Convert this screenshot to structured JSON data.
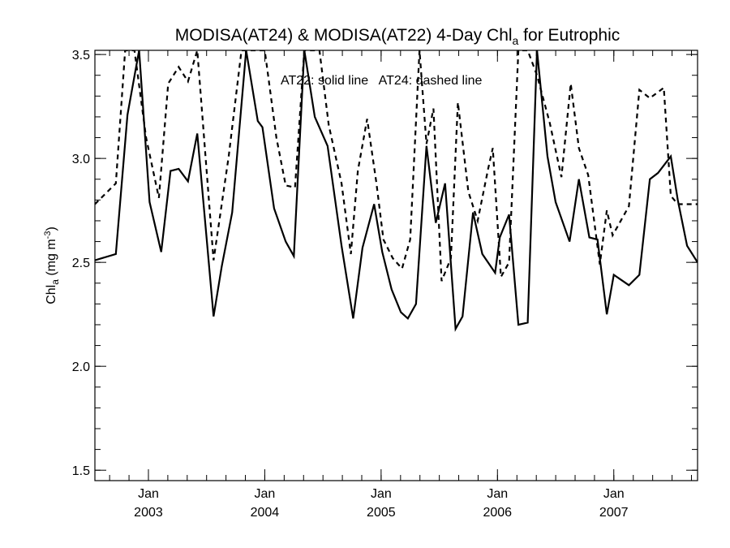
{
  "chart_data": {
    "type": "line",
    "title_main": "MODISA(AT24) & MODISA(AT22) 4-Day Chl",
    "title_sub": "a",
    "title_tail": " for Eutrophic",
    "ylabel_main": "Chl",
    "ylabel_sub": "a",
    "ylabel_unit": " (mg m",
    "ylabel_sup": "-3",
    "ylabel_close": ")",
    "annotation": "AT22: solid line   AT24: dashed line",
    "ylim": [
      1.45,
      3.52
    ],
    "xlim": [
      2002.54,
      2007.72
    ],
    "y_ticks": [
      {
        "value": 1.5,
        "label": "1.5"
      },
      {
        "value": 2.0,
        "label": "2.0"
      },
      {
        "value": 2.5,
        "label": "2.5"
      },
      {
        "value": 3.0,
        "label": "3.0"
      },
      {
        "value": 3.5,
        "label": "3.5"
      }
    ],
    "y_minor_step": 0.1,
    "x_ticks": [
      {
        "value": 2003.0,
        "month": "Jan",
        "year": "2003"
      },
      {
        "value": 2004.0,
        "month": "Jan",
        "year": "2004"
      },
      {
        "value": 2005.0,
        "month": "Jan",
        "year": "2005"
      },
      {
        "value": 2006.0,
        "month": "Jan",
        "year": "2006"
      },
      {
        "value": 2007.0,
        "month": "Jan",
        "year": "2007"
      }
    ],
    "x_minor_step": 0.1667,
    "grid": false,
    "series": [
      {
        "style": "solid",
        "x": [
          2002.54,
          2002.72,
          2002.82,
          2002.92,
          2003.01,
          2003.11,
          2003.19,
          2003.26,
          2003.34,
          2003.42,
          2003.56,
          2003.63,
          2003.72,
          2003.84,
          2003.94,
          2003.98,
          2004.08,
          2004.18,
          2004.25,
          2004.34,
          2004.43,
          2004.54,
          2004.66,
          2004.76,
          2004.84,
          2004.94,
          2005.01,
          2005.09,
          2005.17,
          2005.23,
          2005.3,
          2005.39,
          2005.47,
          2005.55,
          2005.64,
          2005.7,
          2005.79,
          2005.87,
          2005.98,
          2006.02,
          2006.1,
          2006.18,
          2006.26,
          2006.34,
          2006.43,
          2006.5,
          2006.62,
          2006.7,
          2006.79,
          2006.86,
          2006.94,
          2007.0,
          2007.13,
          2007.22,
          2007.31,
          2007.38,
          2007.49,
          2007.55,
          2007.63,
          2007.72
        ],
        "y": [
          2.51,
          2.54,
          3.21,
          3.52,
          2.79,
          2.55,
          2.94,
          2.95,
          2.89,
          3.12,
          2.24,
          2.48,
          2.74,
          3.52,
          3.18,
          3.15,
          2.76,
          2.6,
          2.53,
          3.52,
          3.2,
          3.06,
          2.58,
          2.23,
          2.57,
          2.78,
          2.55,
          2.37,
          2.26,
          2.23,
          2.3,
          3.06,
          2.69,
          2.88,
          2.18,
          2.24,
          2.74,
          2.54,
          2.45,
          2.62,
          2.73,
          2.2,
          2.21,
          3.52,
          3.01,
          2.79,
          2.6,
          2.9,
          2.62,
          2.61,
          2.25,
          2.44,
          2.39,
          2.44,
          2.9,
          2.93,
          3.01,
          2.8,
          2.58,
          2.5
        ]
      },
      {
        "style": "dashed",
        "x": [
          2002.54,
          2002.72,
          2002.8,
          2002.88,
          2002.98,
          2003.09,
          2003.17,
          2003.26,
          2003.34,
          2003.42,
          2003.56,
          2003.69,
          2003.8,
          2003.86,
          2004.0,
          2004.1,
          2004.18,
          2004.26,
          2004.34,
          2004.47,
          2004.55,
          2004.66,
          2004.74,
          2004.8,
          2004.88,
          2004.96,
          2005.02,
          2005.1,
          2005.18,
          2005.25,
          2005.33,
          2005.39,
          2005.45,
          2005.52,
          2005.6,
          2005.66,
          2005.75,
          2005.83,
          2005.92,
          2005.96,
          2006.03,
          2006.1,
          2006.18,
          2006.26,
          2006.34,
          2006.45,
          2006.55,
          2006.63,
          2006.7,
          2006.78,
          2006.88,
          2006.94,
          2006.99,
          2007.13,
          2007.22,
          2007.31,
          2007.43,
          2007.49,
          2007.55,
          2007.63,
          2007.72
        ],
        "y": [
          2.78,
          2.88,
          3.52,
          3.52,
          3.1,
          2.81,
          3.36,
          3.44,
          3.37,
          3.52,
          2.51,
          3.01,
          3.52,
          3.52,
          3.52,
          3.1,
          2.87,
          2.86,
          3.52,
          3.52,
          3.16,
          2.88,
          2.54,
          2.94,
          3.19,
          2.88,
          2.61,
          2.52,
          2.47,
          2.61,
          3.52,
          3.07,
          3.24,
          2.41,
          2.52,
          3.27,
          2.84,
          2.7,
          2.95,
          3.05,
          2.43,
          2.5,
          3.52,
          3.52,
          3.4,
          3.17,
          2.91,
          3.36,
          3.05,
          2.92,
          2.49,
          2.75,
          2.63,
          2.77,
          3.33,
          3.29,
          3.34,
          2.82,
          2.78,
          2.78,
          2.78
        ]
      }
    ]
  }
}
